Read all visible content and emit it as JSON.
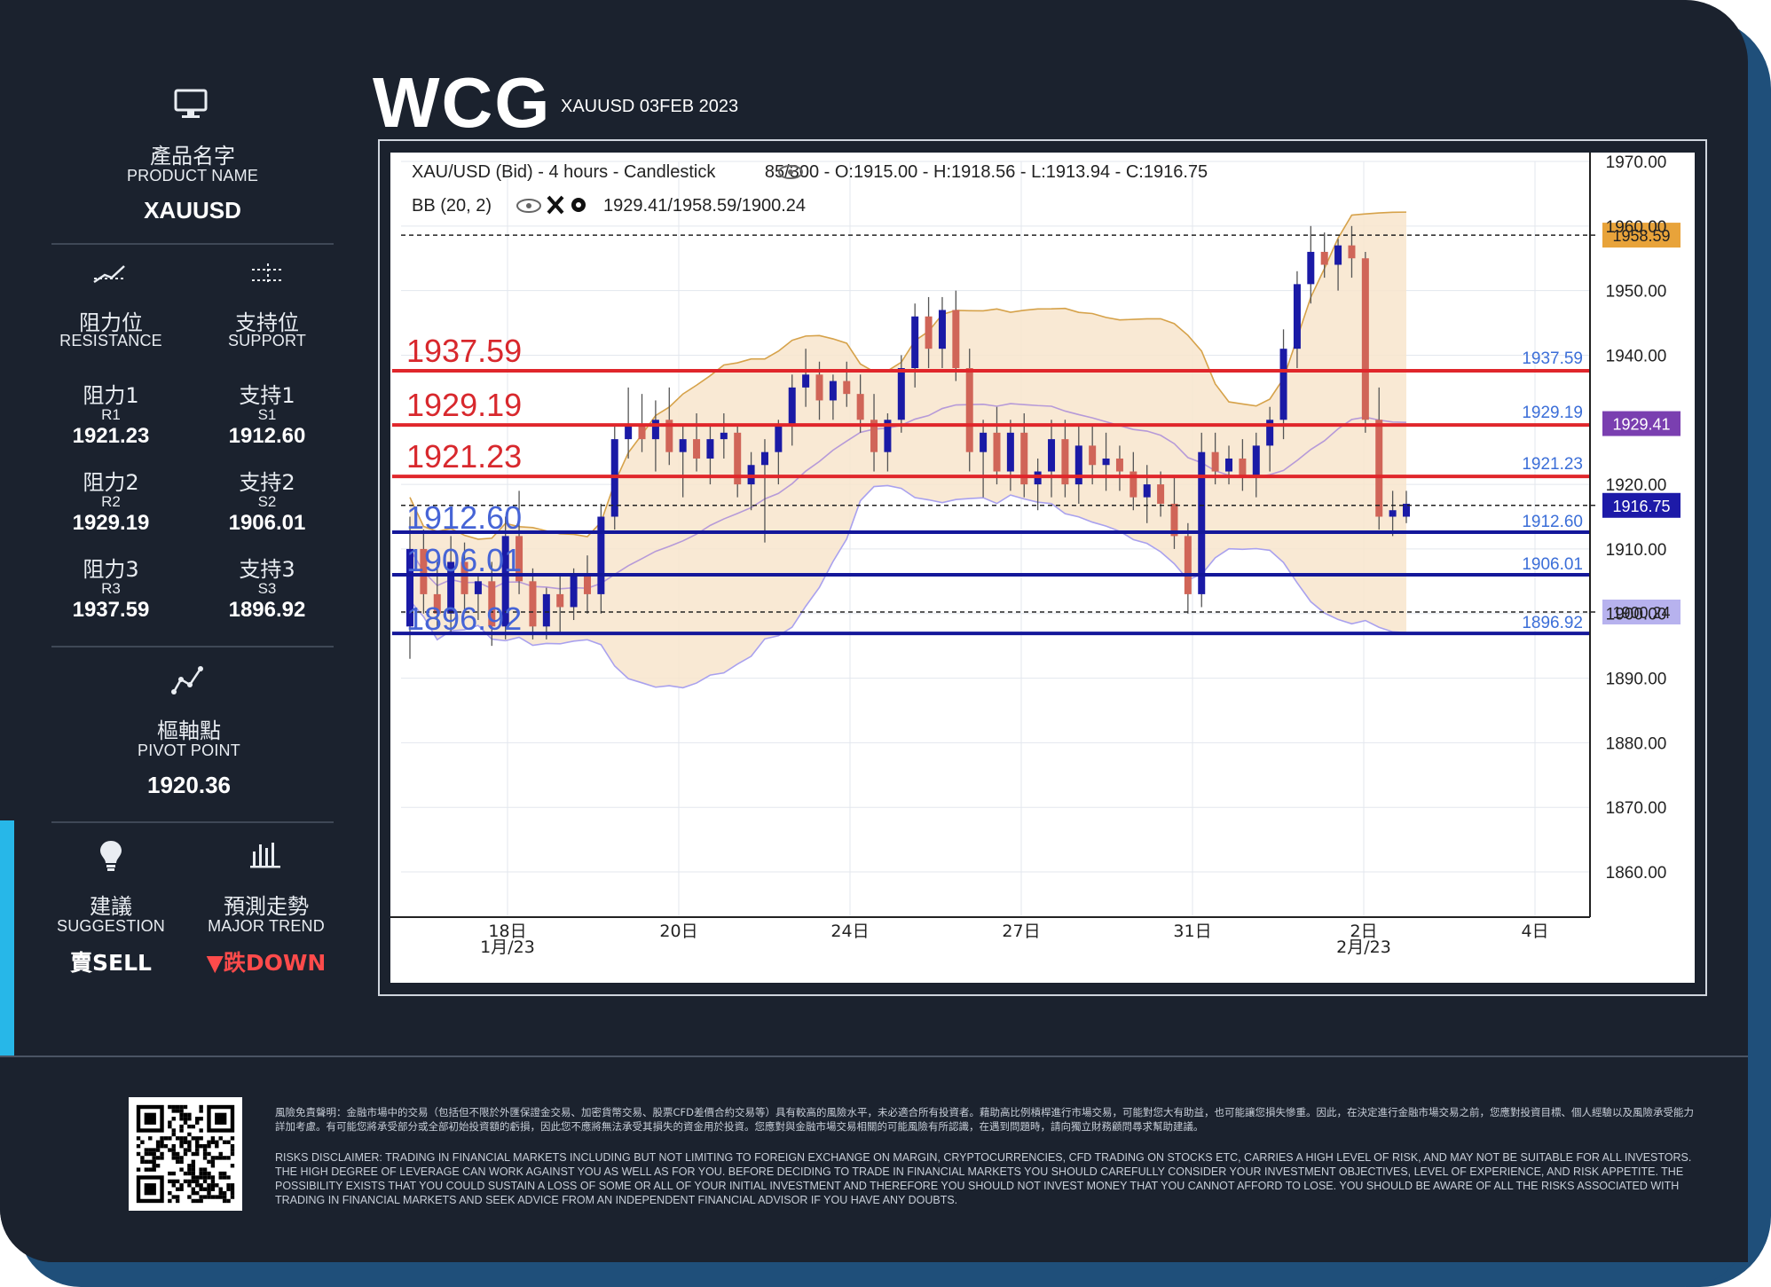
{
  "header": {
    "logo": "WCG",
    "instrument_date": "XAUUSD 03FEB 2023"
  },
  "panel": {
    "product": {
      "label_zh": "產品名字",
      "label_en": "PRODUCT NAME",
      "value": "XAUUSD",
      "icon": "monitor-icon"
    },
    "resistance": {
      "label_zh": "阻力位",
      "label_en": "RESISTANCE",
      "icon": "resistance-icon"
    },
    "support": {
      "label_zh": "支持位",
      "label_en": "SUPPORT",
      "icon": "support-icon"
    },
    "levels": [
      {
        "r_zh": "阻力1",
        "r_code": "R1",
        "r_val": "1921.23",
        "s_zh": "支持1",
        "s_code": "S1",
        "s_val": "1912.60"
      },
      {
        "r_zh": "阻力2",
        "r_code": "R2",
        "r_val": "1929.19",
        "s_zh": "支持2",
        "s_code": "S2",
        "s_val": "1906.01"
      },
      {
        "r_zh": "阻力3",
        "r_code": "R3",
        "r_val": "1937.59",
        "s_zh": "支持3",
        "s_code": "S3",
        "s_val": "1896.92"
      }
    ],
    "pivot": {
      "label_zh": "樞軸點",
      "label_en": "PIVOT POINT",
      "value": "1920.36",
      "icon": "pivot-chart-icon"
    },
    "suggestion": {
      "label_zh": "建議",
      "label_en": "SUGGESTION",
      "value": "賣SELL",
      "icon": "lightbulb-icon"
    },
    "trend": {
      "label_zh": "預測走勢",
      "label_en": "MAJOR TREND",
      "value": "▼跌DOWN",
      "icon": "bar-chart-icon"
    }
  },
  "chart_data": {
    "type": "candlestick",
    "title": "XAU/USD (Bid) - 4 hours - Candlestick",
    "view": "85/300",
    "ohlc_label": "O:1915.00 - H:1918.56 - L:1913.94 - C:1916.75",
    "indicator_label": "BB (20, 2)",
    "indicator_values": "1929.41/1958.59/1900.24",
    "ylim": [
      1853,
      1970
    ],
    "y_ticks": [
      "1970.00",
      "1960.00",
      "1950.00",
      "1940.00",
      "1920.00",
      "1910.00",
      "1900.00",
      "1890.00",
      "1880.00",
      "1870.00",
      "1860.00"
    ],
    "y_tick_values": [
      1970,
      1960,
      1950,
      1940,
      1920,
      1910,
      1900,
      1890,
      1880,
      1870,
      1860
    ],
    "x_ticks": [
      {
        "label": "18日",
        "sub": "1月/23",
        "x": 0
      },
      {
        "label": "20日",
        "sub": "",
        "x": 2
      },
      {
        "label": "24日",
        "sub": "",
        "x": 4
      },
      {
        "label": "27日",
        "sub": "",
        "x": 6
      },
      {
        "label": "31日",
        "sub": "",
        "x": 8
      },
      {
        "label": "2日",
        "sub": "2月/23",
        "x": 10
      },
      {
        "label": "4日",
        "sub": "",
        "x": 12
      }
    ],
    "resistance_lines": [
      {
        "label": "1937.59",
        "value": 1937.59
      },
      {
        "label": "1929.19",
        "value": 1929.19
      },
      {
        "label": "1921.23",
        "value": 1921.23
      }
    ],
    "support_lines": [
      {
        "label": "1912.60",
        "value": 1912.6
      },
      {
        "label": "1906.01",
        "value": 1906.01
      },
      {
        "label": "1896.92",
        "value": 1896.92
      }
    ],
    "price_tags": [
      {
        "label": "1958.59",
        "value": 1958.59,
        "color": "#e8a33a"
      },
      {
        "label": "1929.41",
        "value": 1929.41,
        "color": "#7a3fb0"
      },
      {
        "label": "1916.75",
        "value": 1916.75,
        "color": "#1d1aa8"
      },
      {
        "label": "1900.24",
        "value": 1900.24,
        "color": "#b7b2ee"
      }
    ],
    "dashed_levels": [
      1958.59,
      1916.75,
      1900.24
    ],
    "candles": [
      [
        1898,
        1915,
        1893,
        1910
      ],
      [
        1910,
        1913,
        1900,
        1903
      ],
      [
        1903,
        1908,
        1898,
        1900
      ],
      [
        1900,
        1912,
        1897,
        1908
      ],
      [
        1908,
        1911,
        1900,
        1903
      ],
      [
        1903,
        1906,
        1899,
        1905
      ],
      [
        1905,
        1908,
        1895,
        1898
      ],
      [
        1898,
        1915,
        1896,
        1912
      ],
      [
        1912,
        1919,
        1903,
        1905
      ],
      [
        1905,
        1907,
        1896,
        1898
      ],
      [
        1898,
        1904,
        1896,
        1903
      ],
      [
        1903,
        1906,
        1897,
        1901
      ],
      [
        1901,
        1907,
        1899,
        1906
      ],
      [
        1906,
        1909,
        1900,
        1903
      ],
      [
        1903,
        1917,
        1900,
        1915
      ],
      [
        1915,
        1929,
        1913,
        1927
      ],
      [
        1927,
        1935,
        1924,
        1929
      ],
      [
        1929,
        1934,
        1925,
        1927
      ],
      [
        1927,
        1933,
        1922,
        1930
      ],
      [
        1930,
        1935,
        1923,
        1925
      ],
      [
        1925,
        1929,
        1918,
        1927
      ],
      [
        1927,
        1931,
        1922,
        1924
      ],
      [
        1924,
        1929,
        1920,
        1927
      ],
      [
        1927,
        1931,
        1924,
        1928
      ],
      [
        1928,
        1929,
        1918,
        1920
      ],
      [
        1920,
        1925,
        1916,
        1923
      ],
      [
        1923,
        1927,
        1911,
        1925
      ],
      [
        1925,
        1930,
        1920,
        1929
      ],
      [
        1929,
        1937,
        1926,
        1935
      ],
      [
        1935,
        1941,
        1932,
        1937
      ],
      [
        1937,
        1939,
        1930,
        1933
      ],
      [
        1933,
        1937,
        1930,
        1936
      ],
      [
        1936,
        1939,
        1932,
        1934
      ],
      [
        1934,
        1937,
        1928,
        1930
      ],
      [
        1930,
        1934,
        1922,
        1925
      ],
      [
        1925,
        1931,
        1922,
        1930
      ],
      [
        1930,
        1940,
        1928,
        1938
      ],
      [
        1938,
        1948,
        1935,
        1946
      ],
      [
        1946,
        1949,
        1938,
        1941
      ],
      [
        1941,
        1949,
        1938,
        1947
      ],
      [
        1947,
        1950,
        1936,
        1938
      ],
      [
        1938,
        1941,
        1922,
        1925
      ],
      [
        1925,
        1930,
        1918,
        1928
      ],
      [
        1928,
        1932,
        1920,
        1922
      ],
      [
        1922,
        1930,
        1919,
        1928
      ],
      [
        1928,
        1931,
        1918,
        1920
      ],
      [
        1920,
        1924,
        1916,
        1922
      ],
      [
        1922,
        1930,
        1918,
        1927
      ],
      [
        1927,
        1930,
        1918,
        1920
      ],
      [
        1920,
        1929,
        1917,
        1926
      ],
      [
        1926,
        1929,
        1920,
        1923
      ],
      [
        1923,
        1928,
        1919,
        1924
      ],
      [
        1924,
        1926,
        1919,
        1922
      ],
      [
        1922,
        1925,
        1916,
        1918
      ],
      [
        1918,
        1923,
        1914,
        1920
      ],
      [
        1920,
        1922,
        1915,
        1917
      ],
      [
        1917,
        1921,
        1910,
        1912
      ],
      [
        1912,
        1914,
        1900,
        1903
      ],
      [
        1903,
        1928,
        1901,
        1925
      ],
      [
        1925,
        1928,
        1920,
        1922
      ],
      [
        1922,
        1926,
        1920,
        1924
      ],
      [
        1924,
        1927,
        1919,
        1921
      ],
      [
        1921,
        1928,
        1918,
        1926
      ],
      [
        1926,
        1932,
        1922,
        1930
      ],
      [
        1930,
        1944,
        1927,
        1941
      ],
      [
        1941,
        1953,
        1938,
        1951
      ],
      [
        1951,
        1960,
        1948,
        1956
      ],
      [
        1956,
        1959,
        1952,
        1954
      ],
      [
        1954,
        1958,
        1950,
        1957
      ],
      [
        1957,
        1960,
        1952,
        1955
      ],
      [
        1955,
        1956,
        1928,
        1930
      ],
      [
        1930,
        1935,
        1913,
        1915
      ],
      [
        1915,
        1919,
        1912,
        1916
      ],
      [
        1915,
        1919,
        1914,
        1917
      ]
    ]
  },
  "disclaimer": {
    "zh": "風險免責聲明：金融市場中的交易（包括但不限於外匯保證金交易、加密貨幣交易、股票CFD差價合約交易等）具有較高的風險水平，未必適合所有投資者。藉助高比例槓桿進行市場交易，可能對您大有助益，也可能讓您損失慘重。因此，在決定進行金融市場交易之前，您應對投資目標、個人經驗以及風險承受能力詳加考慮。有可能您將承受部分或全部初始投資額的虧損，因此您不應將無法承受其損失的資金用於投資。您應對與金融市場交易相關的可能風險有所認識，在遇到問題時，請向獨立財務顧問尋求幫助建議。",
    "en": "RISKS DISCLAIMER: TRADING IN FINANCIAL MARKETS INCLUDING BUT NOT LIMITING TO FOREIGN EXCHANGE ON MARGIN, CRYPTOCURRENCIES, CFD TRADING ON STOCKS ETC, CARRIES A HIGH LEVEL OF RISK, AND MAY NOT BE SUITABLE FOR ALL INVESTORS. THE HIGH DEGREE OF LEVERAGE CAN WORK AGAINST YOU AS WELL AS FOR YOU. BEFORE DECIDING TO TRADE IN FINANCIAL MARKETS YOU SHOULD CAREFULLY CONSIDER YOUR INVESTMENT OBJECTIVES, LEVEL OF EXPERIENCE, AND RISK APPETITE. THE POSSIBILITY EXISTS THAT YOU COULD SUSTAIN A LOSS OF SOME OR ALL OF YOUR INITIAL INVESTMENT AND THEREFORE YOU SHOULD NOT INVEST MONEY THAT YOU CANNOT AFFORD TO LOSE. YOU SHOULD BE AWARE OF ALL THE RISKS ASSOCIATED WITH TRADING IN FINANCIAL MARKETS AND SEEK ADVICE FROM AN INDEPENDENT FINANCIAL ADVISOR IF YOU HAVE ANY DOUBTS."
  },
  "colors": {
    "background": "#1b222e",
    "resistance": "#e0262b",
    "support": "#14179a",
    "bollinger_fill": "#f8e5cd",
    "up_candle": "#1a1aa6",
    "down_candle": "#d06558"
  }
}
